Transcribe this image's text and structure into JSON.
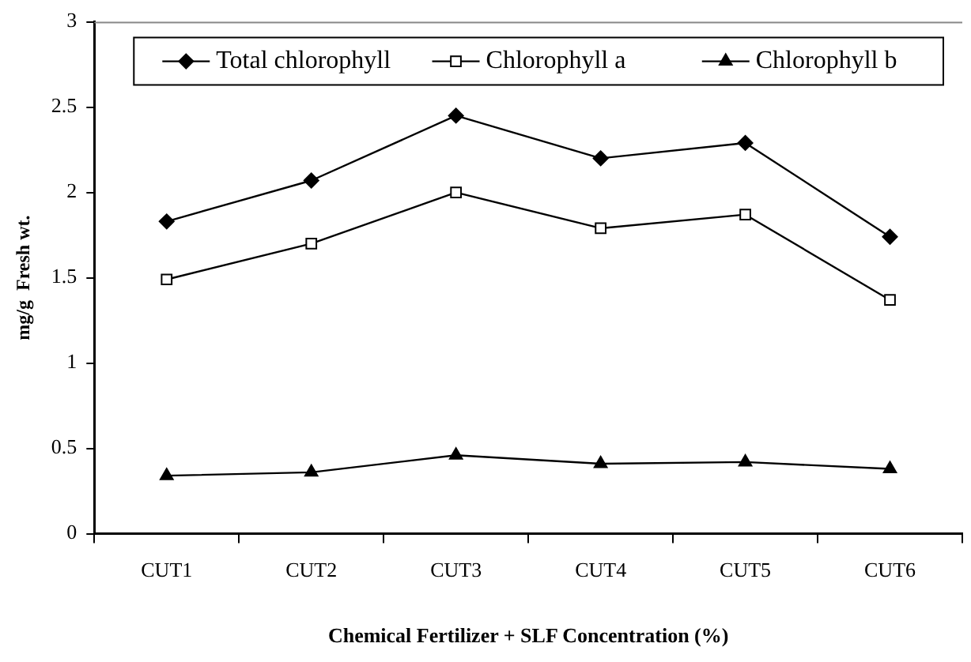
{
  "chart_data": {
    "type": "line",
    "xlabel": "Chemical Fertilizer + SLF Concentration (%)",
    "ylabel": "mg/g  Fresh wt.",
    "categories": [
      "CUT1",
      "CUT2",
      "CUT3",
      "CUT4",
      "CUT5",
      "CUT6"
    ],
    "series": [
      {
        "name": "Total chlorophyll",
        "color": "#000000",
        "marker": "diamond",
        "values": [
          1.83,
          2.07,
          2.45,
          2.2,
          2.29,
          1.74
        ]
      },
      {
        "name": "Chlorophyll a",
        "color": "#000000",
        "marker": "square",
        "values": [
          1.49,
          1.7,
          2.0,
          1.79,
          1.87,
          1.37
        ]
      },
      {
        "name": "Chlorophyll b",
        "color": "#000000",
        "marker": "triangle",
        "values": [
          0.34,
          0.36,
          0.46,
          0.41,
          0.42,
          0.38
        ]
      }
    ],
    "ylim": [
      0,
      3
    ],
    "yticks": [
      0,
      0.5,
      1,
      1.5,
      2,
      2.5,
      3
    ],
    "grid": false,
    "legend": "top",
    "line_style": "solid"
  }
}
